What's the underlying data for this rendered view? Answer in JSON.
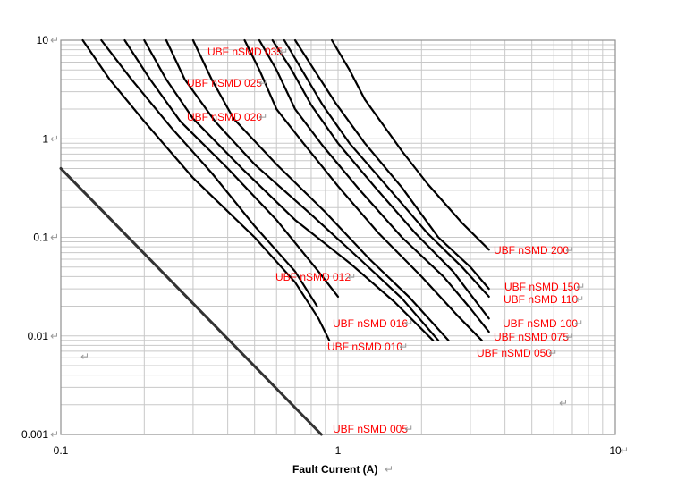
{
  "chart_data": {
    "type": "line",
    "title": "",
    "xlabel": "Fault Current (A)",
    "ylabel": "",
    "xscale": "log",
    "yscale": "log",
    "xlim": [
      0.1,
      10
    ],
    "ylim": [
      0.001,
      10
    ],
    "grid": true,
    "x_ticks": [
      "0.1",
      "1",
      "10"
    ],
    "y_ticks": [
      "0.001",
      "0.01",
      "0.1",
      "1",
      "10"
    ],
    "paragraph_mark": "↵",
    "colors": {
      "curve": "#000000",
      "label": "#ff0000",
      "grid": "#c8c8c8",
      "frame": "#909090",
      "mark": "#999999"
    },
    "series": [
      {
        "name": "UBF nSMD 005",
        "points": [
          [
            0.1,
            0.5
          ],
          [
            0.87,
            0.001
          ]
        ]
      },
      {
        "name": "UBF nSMD 010",
        "points": [
          [
            0.12,
            10
          ],
          [
            0.15,
            4
          ],
          [
            0.2,
            1.5
          ],
          [
            0.3,
            0.4
          ],
          [
            0.5,
            0.1
          ],
          [
            0.7,
            0.035
          ],
          [
            0.85,
            0.015
          ],
          [
            0.93,
            0.009
          ]
        ]
      },
      {
        "name": "UBF nSMD 012",
        "points": [
          [
            0.14,
            10
          ],
          [
            0.18,
            4
          ],
          [
            0.25,
            1.3
          ],
          [
            0.35,
            0.45
          ],
          [
            0.5,
            0.13
          ],
          [
            0.7,
            0.045
          ],
          [
            0.84,
            0.02
          ]
        ]
      },
      {
        "name": "UBF nSMD 016",
        "points": [
          [
            0.17,
            10
          ],
          [
            0.21,
            4
          ],
          [
            0.27,
            1.5
          ],
          [
            0.4,
            0.5
          ],
          [
            0.6,
            0.15
          ],
          [
            0.85,
            0.045
          ],
          [
            1.0,
            0.025
          ]
        ]
      },
      {
        "name": "UBF nSMD 020",
        "points": [
          [
            0.2,
            10
          ],
          [
            0.24,
            4
          ],
          [
            0.3,
            1.6
          ],
          [
            0.45,
            0.5
          ],
          [
            0.7,
            0.15
          ],
          [
            1.1,
            0.055
          ],
          [
            1.6,
            0.022
          ],
          [
            2.2,
            0.009
          ]
        ]
      },
      {
        "name": "UBF nSMD 025",
        "points": [
          [
            0.24,
            10
          ],
          [
            0.28,
            4
          ],
          [
            0.36,
            1.5
          ],
          [
            0.5,
            0.55
          ],
          [
            0.8,
            0.17
          ],
          [
            1.2,
            0.06
          ],
          [
            1.7,
            0.024
          ],
          [
            2.3,
            0.009
          ]
        ]
      },
      {
        "name": "UBF nSMD 035",
        "points": [
          [
            0.3,
            10
          ],
          [
            0.35,
            4
          ],
          [
            0.42,
            1.6
          ],
          [
            0.6,
            0.55
          ],
          [
            0.9,
            0.18
          ],
          [
            1.3,
            0.06
          ],
          [
            1.8,
            0.025
          ],
          [
            2.5,
            0.009
          ]
        ]
      },
      {
        "name": "UBF nSMD 050",
        "points": [
          [
            0.46,
            10
          ],
          [
            0.52,
            5
          ],
          [
            0.6,
            2
          ],
          [
            0.75,
            0.9
          ],
          [
            1.0,
            0.33
          ],
          [
            1.4,
            0.11
          ],
          [
            2.0,
            0.04
          ],
          [
            2.7,
            0.016
          ],
          [
            3.3,
            0.009
          ]
        ]
      },
      {
        "name": "UBF nSMD 075",
        "points": [
          [
            0.52,
            10
          ],
          [
            0.6,
            5
          ],
          [
            0.7,
            2
          ],
          [
            0.88,
            0.85
          ],
          [
            1.2,
            0.3
          ],
          [
            1.7,
            0.1
          ],
          [
            2.4,
            0.04
          ],
          [
            3.0,
            0.019
          ],
          [
            3.5,
            0.011
          ]
        ]
      },
      {
        "name": "UBF nSMD 100",
        "points": [
          [
            0.58,
            10
          ],
          [
            0.68,
            5
          ],
          [
            0.8,
            2.2
          ],
          [
            1.0,
            0.9
          ],
          [
            1.35,
            0.33
          ],
          [
            1.9,
            0.11
          ],
          [
            2.6,
            0.045
          ],
          [
            3.5,
            0.015
          ]
        ]
      },
      {
        "name": "UBF nSMD 110",
        "points": [
          [
            0.64,
            10
          ],
          [
            0.74,
            5
          ],
          [
            0.88,
            2.2
          ],
          [
            1.1,
            0.9
          ],
          [
            1.5,
            0.33
          ],
          [
            2.1,
            0.11
          ],
          [
            2.8,
            0.05
          ],
          [
            3.5,
            0.025
          ]
        ]
      },
      {
        "name": "UBF nSMD 150",
        "points": [
          [
            0.7,
            10
          ],
          [
            0.82,
            5
          ],
          [
            0.98,
            2.3
          ],
          [
            1.25,
            0.9
          ],
          [
            1.7,
            0.32
          ],
          [
            2.3,
            0.1
          ],
          [
            3.0,
            0.05
          ],
          [
            3.5,
            0.03
          ]
        ]
      },
      {
        "name": "UBF nSMD 200",
        "points": [
          [
            0.95,
            10
          ],
          [
            1.1,
            5
          ],
          [
            1.25,
            2.5
          ],
          [
            1.45,
            1.4
          ],
          [
            1.7,
            0.75
          ],
          [
            2.1,
            0.35
          ],
          [
            2.8,
            0.14
          ],
          [
            3.5,
            0.075
          ]
        ]
      }
    ]
  }
}
